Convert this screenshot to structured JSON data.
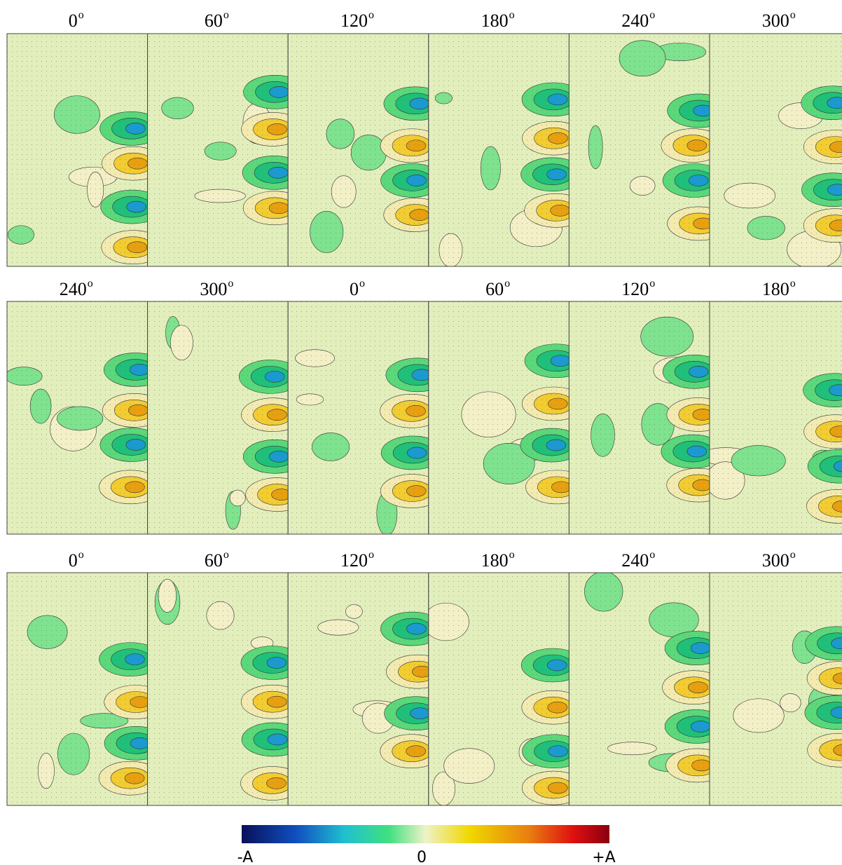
{
  "panels": {
    "rows": [
      [
        "0",
        "60",
        "120",
        "180",
        "240",
        "300"
      ],
      [
        "240",
        "300",
        "0",
        "60",
        "120",
        "180"
      ],
      [
        "0",
        "60",
        "120",
        "180",
        "240",
        "300"
      ]
    ],
    "degree_mark": "o"
  },
  "colorbar": {
    "labels": [
      "-A",
      "0",
      "+A"
    ]
  }
}
